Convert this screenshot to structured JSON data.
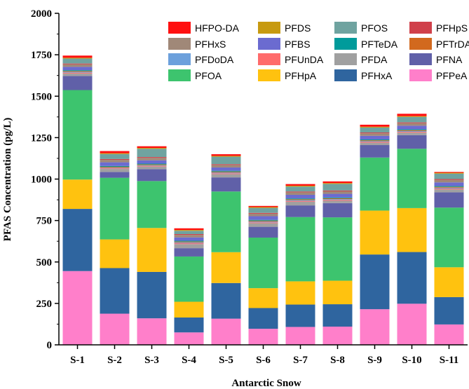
{
  "chart_data": {
    "type": "bar",
    "stacked": true,
    "xlabel": "Antarctic Snow",
    "ylabel": "PFAS Concentration (pg/L)",
    "ylim": [
      0,
      2000
    ],
    "yticks": [
      0,
      250,
      500,
      750,
      1000,
      1250,
      1500,
      1750,
      2000
    ],
    "categories": [
      "S-1",
      "S-2",
      "S-3",
      "S-4",
      "S-5",
      "S-6",
      "S-7",
      "S-8",
      "S-9",
      "S-10",
      "S-11"
    ],
    "legend_position": "top-right",
    "legend_order": [
      "HFPO-DA",
      "PFDS",
      "PFOS",
      "PFHpS",
      "PFHxS",
      "PFBS",
      "PFTeDA",
      "PFTrDA",
      "PFDoDA",
      "PFUnDA",
      "PFDA",
      "PFNA",
      "PFOA",
      "PFHpA",
      "PFHxA",
      "PFPeA"
    ],
    "series": [
      {
        "name": "PFPeA",
        "color": "#ff7fca",
        "values": [
          445,
          188,
          160,
          75,
          158,
          97,
          108,
          110,
          215,
          248,
          123
        ]
      },
      {
        "name": "PFHxA",
        "color": "#2f659f",
        "values": [
          375,
          275,
          280,
          90,
          215,
          125,
          135,
          135,
          330,
          312,
          165
        ]
      },
      {
        "name": "PFHpA",
        "color": "#ffc20f",
        "values": [
          177,
          173,
          265,
          95,
          186,
          120,
          140,
          142,
          265,
          265,
          180
        ]
      },
      {
        "name": "PFOA",
        "color": "#3dc46e",
        "values": [
          540,
          372,
          283,
          273,
          366,
          305,
          388,
          382,
          320,
          358,
          360
        ]
      },
      {
        "name": "PFNA",
        "color": "#6060a8",
        "values": [
          85,
          35,
          72,
          50,
          85,
          65,
          70,
          86,
          75,
          82,
          92
        ]
      },
      {
        "name": "PFDA",
        "color": "#a0a0a0",
        "values": [
          15,
          18,
          15,
          25,
          20,
          22,
          22,
          14,
          14,
          15,
          18
        ]
      },
      {
        "name": "PFUnDA",
        "color": "#ff6b6b",
        "values": [
          5,
          4,
          4,
          5,
          5,
          5,
          5,
          5,
          5,
          5,
          5
        ]
      },
      {
        "name": "PFDoDA",
        "color": "#6ca0dc",
        "values": [
          5,
          4,
          4,
          5,
          5,
          5,
          5,
          5,
          5,
          5,
          5
        ]
      },
      {
        "name": "PFTrDA",
        "color": "#d2691e",
        "values": [
          5,
          5,
          5,
          5,
          5,
          5,
          5,
          5,
          5,
          5,
          5
        ]
      },
      {
        "name": "PFTeDA",
        "color": "#009b9b",
        "values": [
          5,
          5,
          5,
          5,
          5,
          5,
          5,
          5,
          5,
          5,
          5
        ]
      },
      {
        "name": "PFBS",
        "color": "#6b6bd0",
        "values": [
          20,
          22,
          20,
          20,
          20,
          22,
          22,
          22,
          22,
          22,
          22
        ]
      },
      {
        "name": "PFHxS",
        "color": "#a08878",
        "values": [
          15,
          15,
          15,
          15,
          15,
          15,
          15,
          15,
          15,
          15,
          15
        ]
      },
      {
        "name": "PFHpS",
        "color": "#d0404a",
        "values": [
          5,
          5,
          5,
          5,
          5,
          5,
          5,
          5,
          5,
          5,
          5
        ]
      },
      {
        "name": "PFOS",
        "color": "#6fa3a0",
        "values": [
          30,
          30,
          50,
          20,
          45,
          30,
          30,
          40,
          30,
          33,
          33
        ]
      },
      {
        "name": "PFDS",
        "color": "#c79a10",
        "values": [
          5,
          5,
          5,
          5,
          5,
          5,
          5,
          5,
          5,
          5,
          5
        ]
      },
      {
        "name": "HFPO-DA",
        "color": "#ff1010",
        "values": [
          13,
          13,
          10,
          10,
          10,
          7,
          10,
          10,
          12,
          14,
          5
        ]
      }
    ]
  }
}
